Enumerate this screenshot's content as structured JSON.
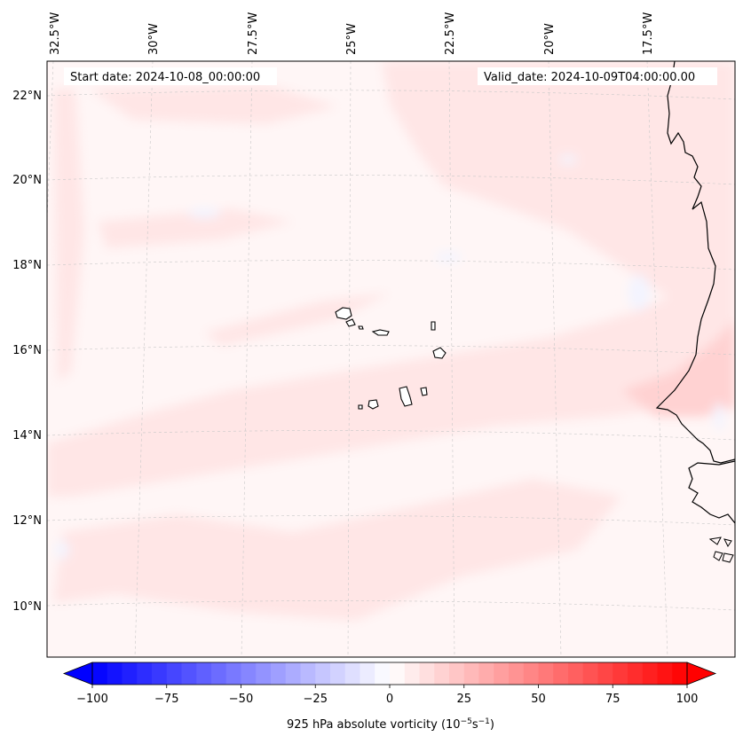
{
  "map": {
    "header": {
      "start_date": "Start date: 2024-10-08_00:00:00",
      "valid_date": "Valid_date: 2024-10-09T04:00:00.00"
    },
    "longitude_labels": [
      "32.5°W",
      "30°W",
      "27.5°W",
      "25°W",
      "22.5°W",
      "20°W",
      "17.5°W"
    ],
    "latitude_labels": [
      "22°N",
      "20°N",
      "18°N",
      "16°N",
      "14°N",
      "12°N",
      "10°N"
    ],
    "colorbar": {
      "label_prefix": "925 hPa absolute vorticity (10",
      "label_exp1": "−5",
      "label_mid": "s",
      "label_exp2": "−1",
      "label_suffix": ")",
      "ticks": [
        "−100",
        "−75",
        "−50",
        "−25",
        "0",
        "25",
        "50",
        "75",
        "100"
      ],
      "min": -100,
      "max": 100,
      "levels": 40,
      "colors": {
        "low": "#0000ff",
        "mid": "#ffffff",
        "high": "#ff0000"
      }
    },
    "colors": {
      "background_field": "#fff6f6",
      "band_light": "#ffe6e6",
      "band_medium": "#ffd2d2",
      "negative_patch": "#f3f4ff",
      "coastline": "#000000",
      "gridline": "#c8c8c8"
    },
    "features": [
      "Cape Verde islands",
      "West African coastline"
    ]
  }
}
